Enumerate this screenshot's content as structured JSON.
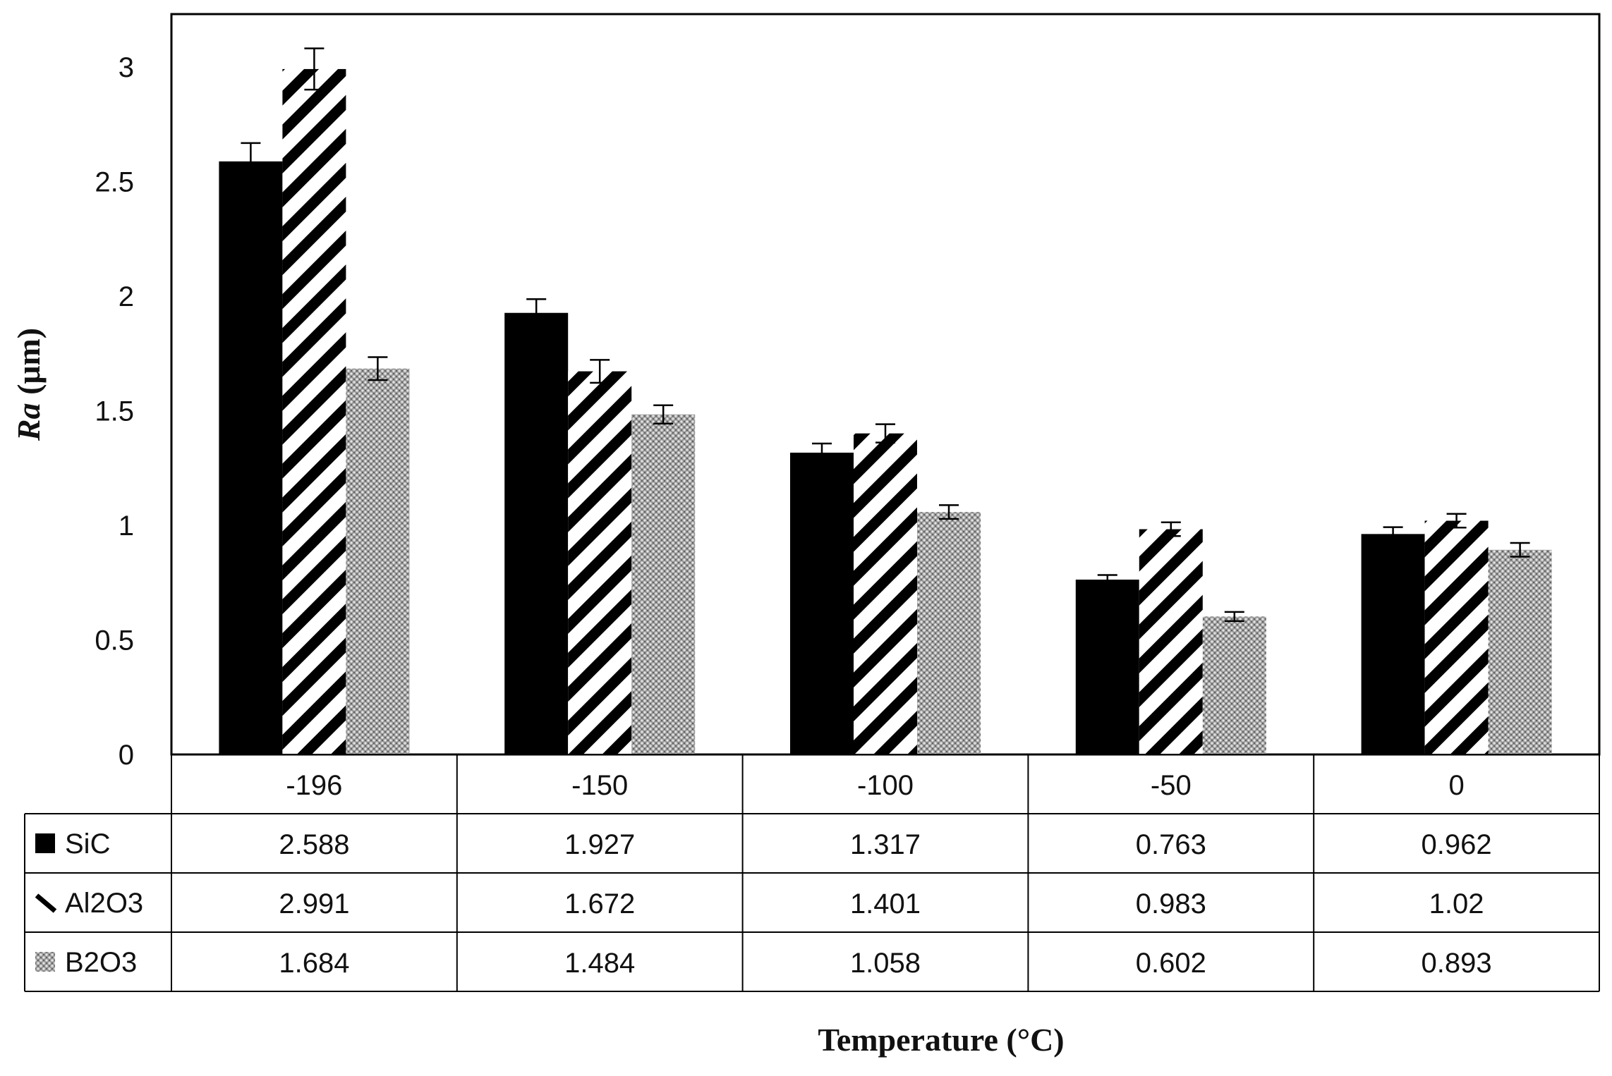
{
  "chart_data": {
    "type": "bar",
    "title": "",
    "xlabel": "Temperature (°C)",
    "ylabel_italic": "Ra",
    "ylabel_unit": " (μm)",
    "ylim": [
      0,
      3
    ],
    "yticks": [
      "0",
      "0.5",
      "1",
      "1.5",
      "2",
      "2.5",
      "3"
    ],
    "ytick_values": [
      0,
      0.5,
      1,
      1.5,
      2,
      2.5,
      3
    ],
    "categories": [
      "-196",
      "-150",
      "-100",
      "-50",
      "0"
    ],
    "grid": false,
    "legend": "data-table",
    "error_bars": true,
    "series": [
      {
        "name": "SiC",
        "pattern": "solid",
        "color": "#000000",
        "values": [
          2.588,
          1.927,
          1.317,
          0.763,
          0.962
        ],
        "labels": [
          "2.588",
          "1.927",
          "1.317",
          "0.763",
          "0.962"
        ],
        "errors": [
          0.08,
          0.06,
          0.04,
          0.02,
          0.03
        ]
      },
      {
        "name": "Al2O3",
        "pattern": "diagonal-stripes",
        "color": "#000000",
        "values": [
          2.991,
          1.672,
          1.401,
          0.983,
          1.02
        ],
        "labels": [
          "2.991",
          "1.672",
          "1.401",
          "0.983",
          "1.02"
        ],
        "errors": [
          0.09,
          0.05,
          0.04,
          0.03,
          0.03
        ]
      },
      {
        "name": "B2O3",
        "pattern": "dotted-grey",
        "color": "#8a8a8a",
        "values": [
          1.684,
          1.484,
          1.058,
          0.602,
          0.893
        ],
        "labels": [
          "1.684",
          "1.484",
          "1.058",
          "0.602",
          "0.893"
        ],
        "errors": [
          0.05,
          0.04,
          0.03,
          0.02,
          0.03
        ]
      }
    ]
  }
}
